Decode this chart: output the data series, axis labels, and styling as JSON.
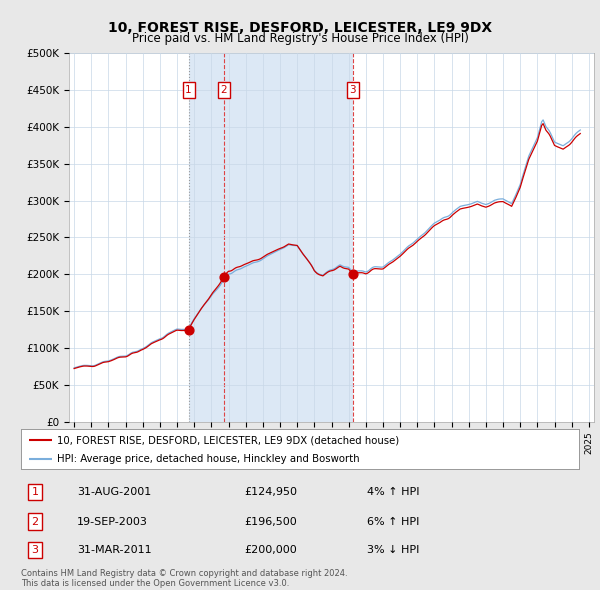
{
  "title": "10, FOREST RISE, DESFORD, LEICESTER, LE9 9DX",
  "subtitle": "Price paid vs. HM Land Registry's House Price Index (HPI)",
  "title_fontsize": 10,
  "subtitle_fontsize": 8.5,
  "ylim": [
    0,
    500000
  ],
  "yticks": [
    0,
    50000,
    100000,
    150000,
    200000,
    250000,
    300000,
    350000,
    400000,
    450000,
    500000
  ],
  "ytick_labels": [
    "£0",
    "£50K",
    "£100K",
    "£150K",
    "£200K",
    "£250K",
    "£300K",
    "£350K",
    "£400K",
    "£450K",
    "£500K"
  ],
  "bg_color": "#e8e8e8",
  "plot_bg_color": "#ffffff",
  "shaded_bg_color": "#dce8f5",
  "red_line_color": "#cc0000",
  "blue_line_color": "#7aaedc",
  "vline1_color": "#bbbbbb",
  "vline23_color": "#dd4444",
  "box_color": "#cc0000",
  "legend_label_red": "10, FOREST RISE, DESFORD, LEICESTER, LE9 9DX (detached house)",
  "legend_label_blue": "HPI: Average price, detached house, Hinckley and Bosworth",
  "transactions": [
    {
      "num": 1,
      "date": "31-AUG-2001",
      "price": 124950,
      "pct": "4%",
      "dir": "↑",
      "x_year": 2001.67
    },
    {
      "num": 2,
      "date": "19-SEP-2003",
      "price": 196500,
      "pct": "6%",
      "dir": "↑",
      "x_year": 2003.72
    },
    {
      "num": 3,
      "date": "31-MAR-2011",
      "price": 200000,
      "pct": "3%",
      "dir": "↓",
      "x_year": 2011.25
    }
  ],
  "footer_line1": "Contains HM Land Registry data © Crown copyright and database right 2024.",
  "footer_line2": "This data is licensed under the Open Government Licence v3.0.",
  "xlim_left": 1994.7,
  "xlim_right": 2025.3
}
